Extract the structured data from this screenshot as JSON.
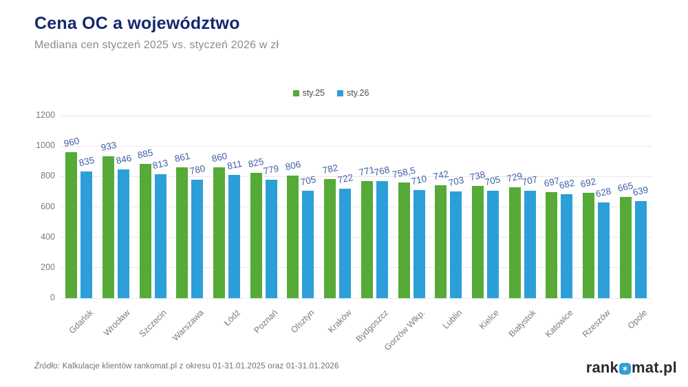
{
  "page": {
    "title": "Cena OC a województwo",
    "subtitle": "Mediana cen styczeń 2025 vs. styczeń 2026 w zł",
    "source_prefix": "Źródło:",
    "source_text": " Kalkulacje klientów rankomat.pl z okresu 01-31.01.2025 oraz 01-31.01.2026",
    "logo": {
      "prefix": "rank",
      "suffix": "mat.pl",
      "icon": "aperture-star-icon",
      "icon_glyph": "✶",
      "icon_color": "#2C9FD8"
    }
  },
  "colors": {
    "title": "#14286F",
    "subtitle": "#8B8B8B",
    "value_label": "#3D5FA8",
    "axis_label": "#7A7A7A",
    "gridline": "#E9E9E9",
    "series_green": "#55AA38",
    "series_blue": "#2C9FD8"
  },
  "chart_data": {
    "type": "bar",
    "title": "Cena OC a województwo",
    "subtitle": "Mediana cen styczeń 2025 vs. styczeń 2026 w zł",
    "categories": [
      "Gdańsk",
      "Wrocław",
      "Szczecin",
      "Warszawa",
      "Łódź",
      "Poznań",
      "Olsztyn",
      "Kraków",
      "Bydgoszcz",
      "Gorzów Wlkp.",
      "Lublin",
      "Kielce",
      "Białystok",
      "Katowice",
      "Rzeszów",
      "Opole"
    ],
    "series": [
      {
        "name": "sty.25",
        "color": "#55AA38",
        "values": [
          960,
          933,
          885,
          861,
          860,
          825,
          806,
          782,
          771,
          758.5,
          742,
          738,
          729,
          697,
          692,
          665
        ],
        "labels": [
          "960",
          "933",
          "885",
          "861",
          "860",
          "825",
          "806",
          "782",
          "771",
          "758,5",
          "742",
          "738",
          "729",
          "697",
          "692",
          "665"
        ]
      },
      {
        "name": "sty.26",
        "color": "#2C9FD8",
        "values": [
          835,
          846,
          813,
          780,
          811,
          779,
          705,
          722,
          768,
          710,
          703,
          705,
          707,
          682,
          628,
          639
        ],
        "labels": [
          "835",
          "846",
          "813",
          "780",
          "811",
          "779",
          "705",
          "722",
          "768",
          "710",
          "703",
          "705",
          "707",
          "682",
          "628",
          "639"
        ]
      }
    ],
    "ylabel": "",
    "xlabel": "",
    "ylim": [
      0,
      1200
    ],
    "ytick_step": 200,
    "grid": true,
    "legend_position": "top-center"
  }
}
